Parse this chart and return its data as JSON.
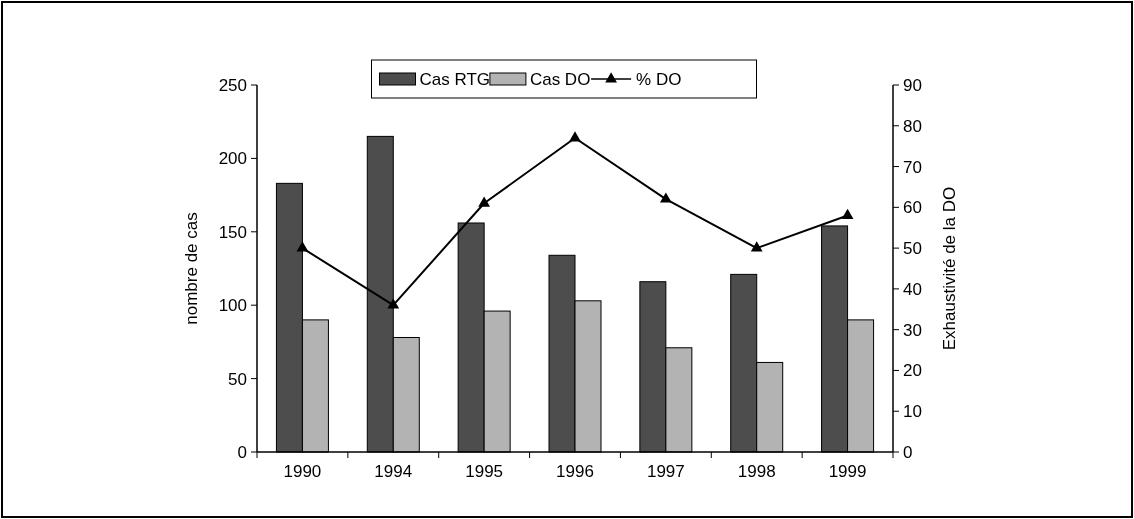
{
  "chart_data": {
    "type": "bar",
    "categories": [
      "1990",
      "1994",
      "1995",
      "1996",
      "1997",
      "1998",
      "1999"
    ],
    "series": [
      {
        "name": "Cas RTG",
        "color": "#4d4d4d",
        "values": [
          183,
          215,
          156,
          134,
          116,
          121,
          154
        ]
      },
      {
        "name": "Cas DO",
        "color": "#b3b3b3",
        "values": [
          90,
          78,
          96,
          103,
          71,
          61,
          90
        ]
      },
      {
        "name": "% DO",
        "type": "line",
        "axis": "y2",
        "color": "#000000",
        "values": [
          50,
          36,
          61,
          77,
          62,
          50,
          58
        ]
      }
    ],
    "ylabel": "nombre de cas",
    "y2label": "Exhaustivité de la DO",
    "ylim": [
      0,
      250
    ],
    "yticks": [
      0,
      50,
      100,
      150,
      200,
      250
    ],
    "y2lim": [
      0,
      90
    ],
    "y2ticks": [
      0,
      10,
      20,
      30,
      40,
      50,
      60,
      70,
      80,
      90
    ],
    "marker": "triangle",
    "legend": "top",
    "grid": false
  }
}
